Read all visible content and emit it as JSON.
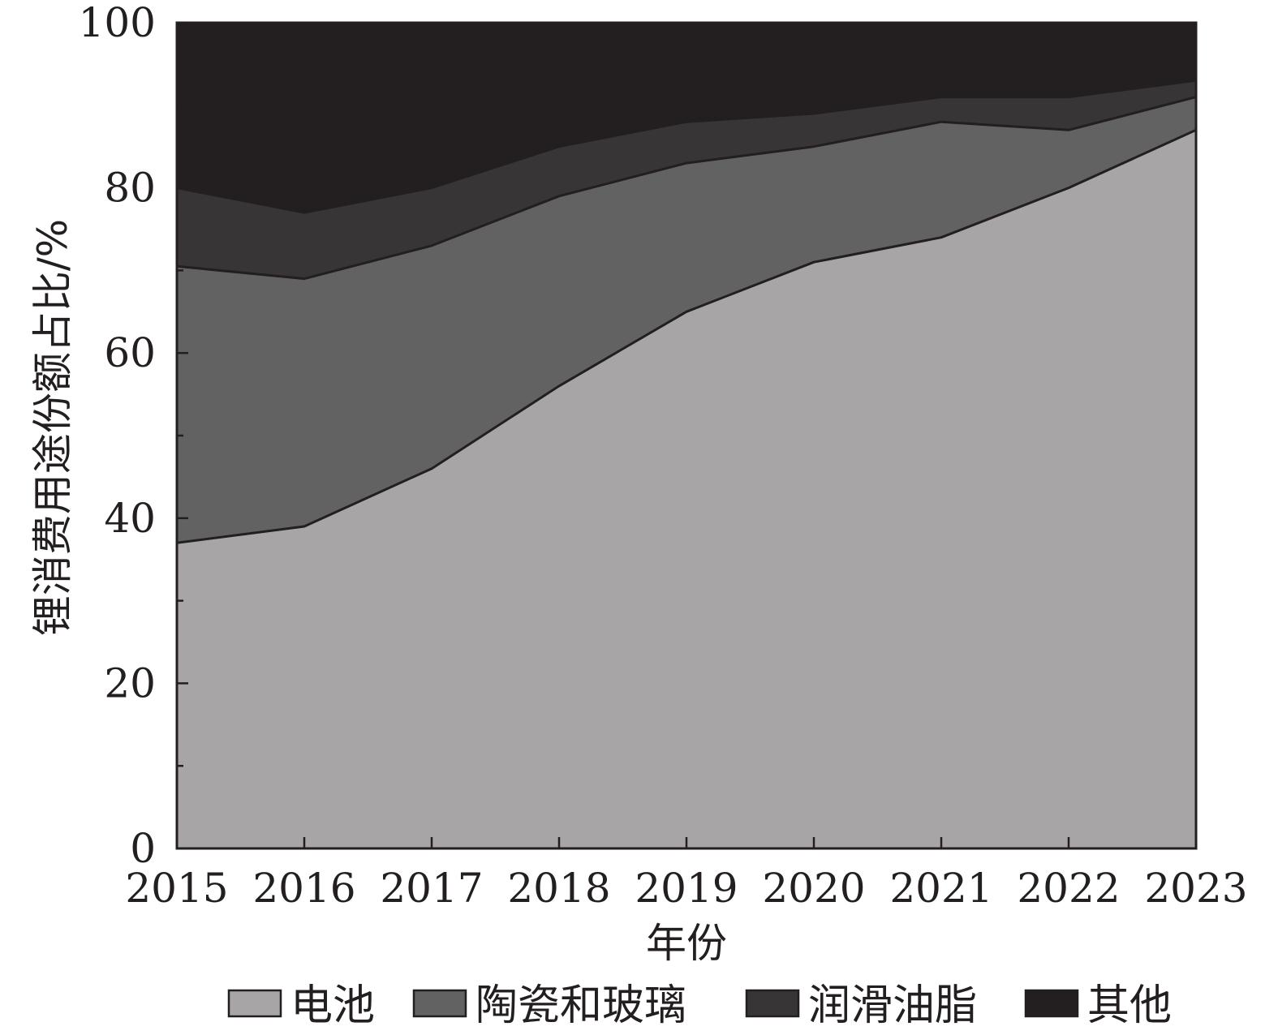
{
  "chart_data": {
    "type": "area",
    "stacked": true,
    "xlabel": "年份",
    "ylabel": "锂消费用途份额占比/%",
    "x": [
      "2015",
      "2016",
      "2017",
      "2018",
      "2019",
      "2020",
      "2021",
      "2022",
      "2023"
    ],
    "ylim": [
      0,
      100
    ],
    "yticks": [
      "0",
      "20",
      "40",
      "60",
      "80",
      "100"
    ],
    "grid": false,
    "legend_position": "bottom",
    "series": [
      {
        "name": "电池",
        "values": [
          37,
          39,
          46,
          56,
          65,
          71,
          74,
          80,
          87
        ],
        "color": "#a7a5a6"
      },
      {
        "name": "陶瓷和玻璃",
        "values": [
          33.5,
          30,
          27,
          23,
          18,
          14,
          14,
          7,
          4
        ],
        "color": "#636263"
      },
      {
        "name": "润滑油脂",
        "values": [
          9.5,
          8,
          7,
          6,
          5,
          4,
          3,
          4,
          2
        ],
        "color": "#383536"
      },
      {
        "name": "其他",
        "values": [
          20,
          23,
          20,
          15,
          12,
          11,
          9,
          9,
          7
        ],
        "color": "#231f20"
      }
    ]
  }
}
